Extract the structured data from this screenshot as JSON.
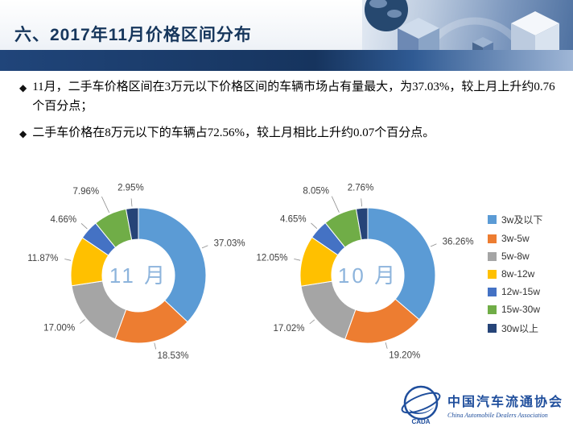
{
  "header": {
    "title": "六、2017年11月价格区间分布"
  },
  "bullet_marker": "◆",
  "bullets": [
    "11月，二手车价格区间在3万元以下价格区间的车辆市场占有量最大，为37.03%，较上月上升约0.76个百分点；",
    "二手车价格在8万元以下的车辆占72.56%，较上月相比上升约0.07个百分点。"
  ],
  "chart_data": [
    {
      "type": "pie",
      "subtype": "donut",
      "center_label": "11 月",
      "center_label_color": "#8db4dc",
      "categories": [
        "3w及以下",
        "3w-5w",
        "5w-8w",
        "8w-12w",
        "12w-15w",
        "15w-30w",
        "30w以上"
      ],
      "values": [
        37.03,
        18.53,
        17.0,
        11.87,
        4.66,
        7.96,
        2.95
      ],
      "labels": [
        "37.03%",
        "18.53%",
        "17.00%",
        "11.87%",
        "4.66%",
        "7.96%",
        "2.95%"
      ],
      "colors": [
        "#5B9BD5",
        "#ED7D31",
        "#A5A5A5",
        "#FFC000",
        "#4472C4",
        "#70AD47",
        "#264478"
      ],
      "legend_position": "right"
    },
    {
      "type": "pie",
      "subtype": "donut",
      "center_label": "10 月",
      "center_label_color": "#8db4dc",
      "categories": [
        "3w及以下",
        "3w-5w",
        "5w-8w",
        "8w-12w",
        "12w-15w",
        "15w-30w",
        "30w以上"
      ],
      "values": [
        36.26,
        19.2,
        17.02,
        12.05,
        4.65,
        8.05,
        2.76
      ],
      "labels": [
        "36.26%",
        "19.20%",
        "17.02%",
        "12.05%",
        "4.65%",
        "8.05%",
        "2.76%"
      ],
      "colors": [
        "#5B9BD5",
        "#ED7D31",
        "#A5A5A5",
        "#FFC000",
        "#4472C4",
        "#70AD47",
        "#264478"
      ],
      "legend_position": "right"
    }
  ],
  "legend": {
    "items": [
      "3w及以下",
      "3w-5w",
      "5w-8w",
      "8w-12w",
      "12w-15w",
      "15w-30w",
      "30w以上"
    ]
  },
  "logo": {
    "name_cn": "中国汽车流通协会",
    "name_en": "China Automobile Dealers Association",
    "acronym": "CADA"
  }
}
